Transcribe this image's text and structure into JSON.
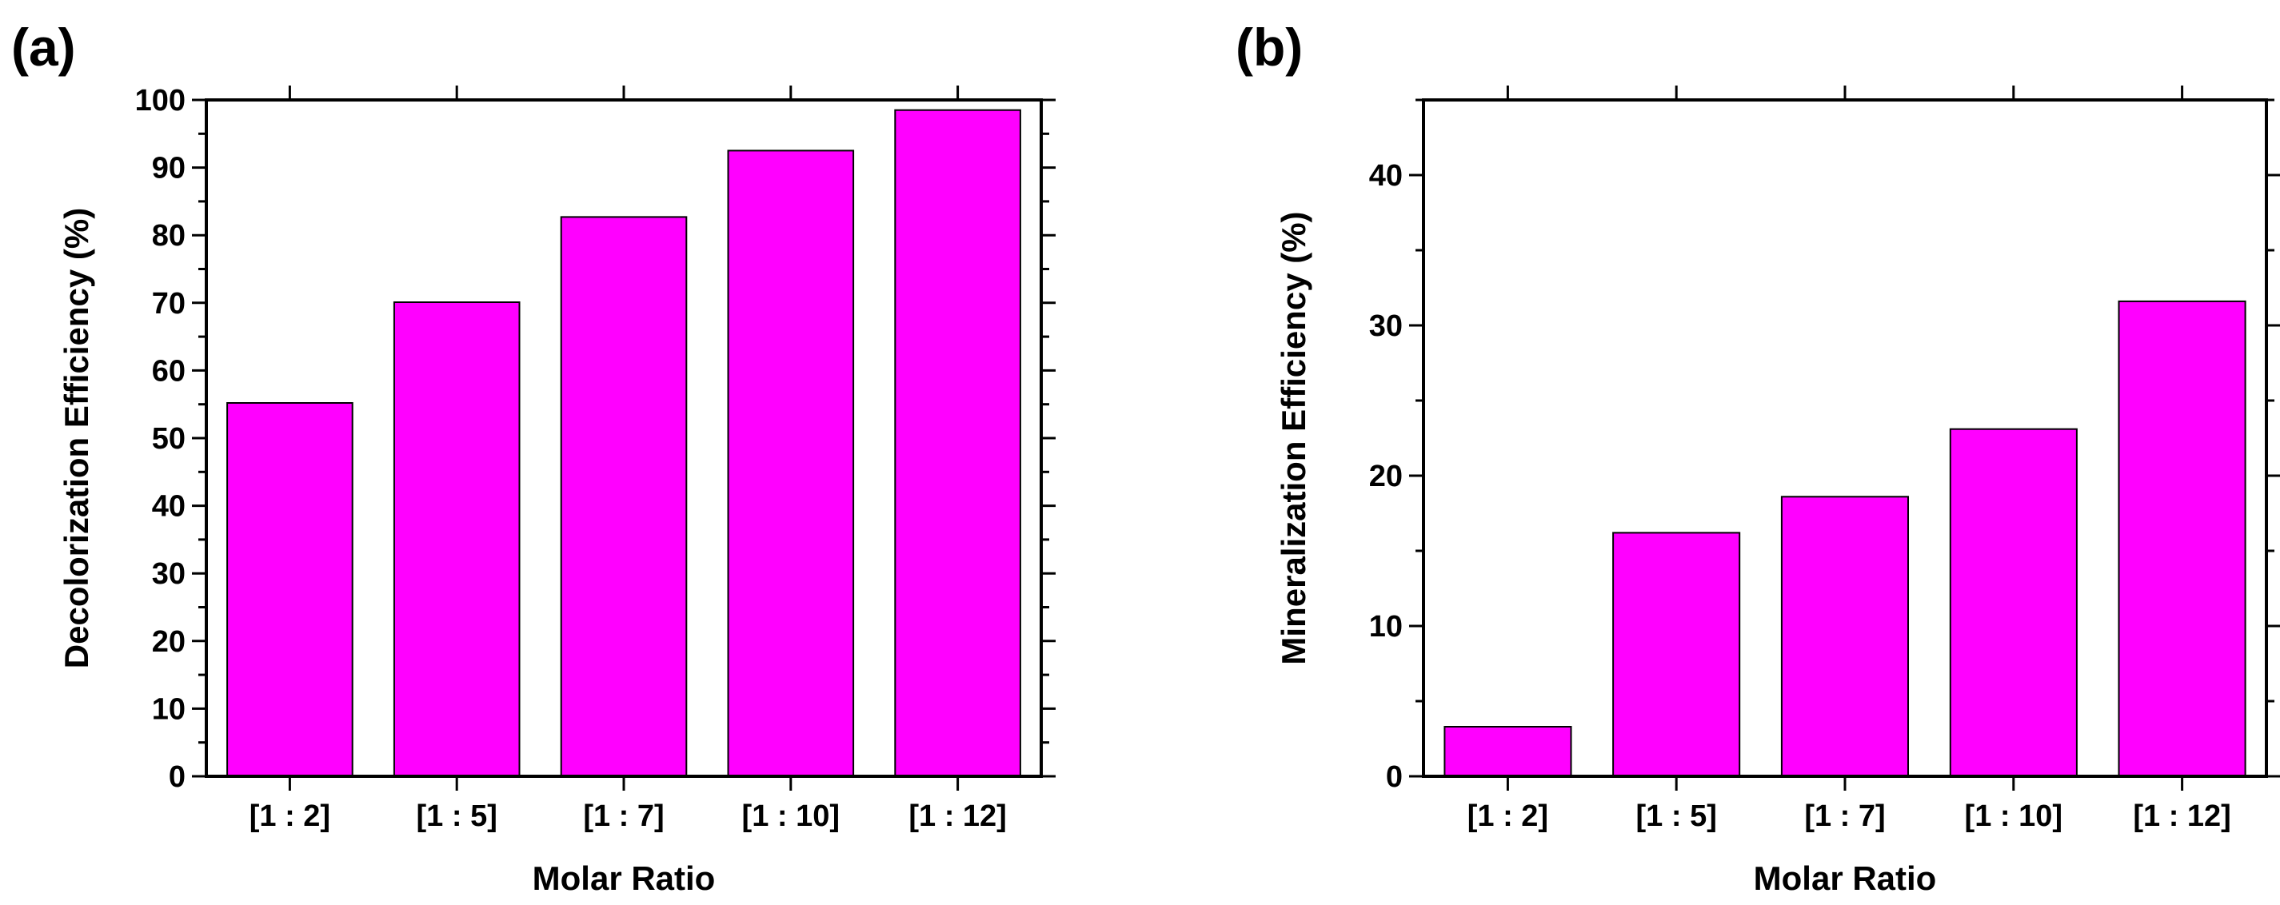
{
  "figure": {
    "panels": [
      "(a)",
      "(b)"
    ]
  },
  "colors": {
    "bar_fill": "#ff00ff",
    "bar_stroke": "#000000",
    "axis": "#000000"
  },
  "chart_data": [
    {
      "type": "bar",
      "panel_label": "(a)",
      "title": "",
      "categories": [
        "[1 : 2]",
        "[1 : 5]",
        "[1 : 7]",
        "[1 : 10]",
        "[1 : 12]"
      ],
      "values": [
        55.2,
        70.1,
        82.7,
        92.5,
        98.5
      ],
      "xlabel": "Molar Ratio",
      "ylabel": "Decolorization Efficiency (%)",
      "ylim": [
        0,
        100
      ],
      "yticks": [
        0,
        10,
        20,
        30,
        40,
        50,
        60,
        70,
        80,
        90,
        100
      ],
      "minor_ticks": true,
      "grid": false,
      "legend": "none"
    },
    {
      "type": "bar",
      "panel_label": "(b)",
      "title": "",
      "categories": [
        "[1 : 2]",
        "[1 : 5]",
        "[1 : 7]",
        "[1 : 10]",
        "[1 : 12]"
      ],
      "values": [
        3.3,
        16.2,
        18.6,
        23.1,
        31.6
      ],
      "xlabel": "Molar Ratio",
      "ylabel": "Mineralization Efficiency (%)",
      "ylim": [
        0,
        45
      ],
      "yticks": [
        0,
        10,
        20,
        30,
        40
      ],
      "minor_ticks": true,
      "grid": false,
      "legend": "none"
    }
  ]
}
